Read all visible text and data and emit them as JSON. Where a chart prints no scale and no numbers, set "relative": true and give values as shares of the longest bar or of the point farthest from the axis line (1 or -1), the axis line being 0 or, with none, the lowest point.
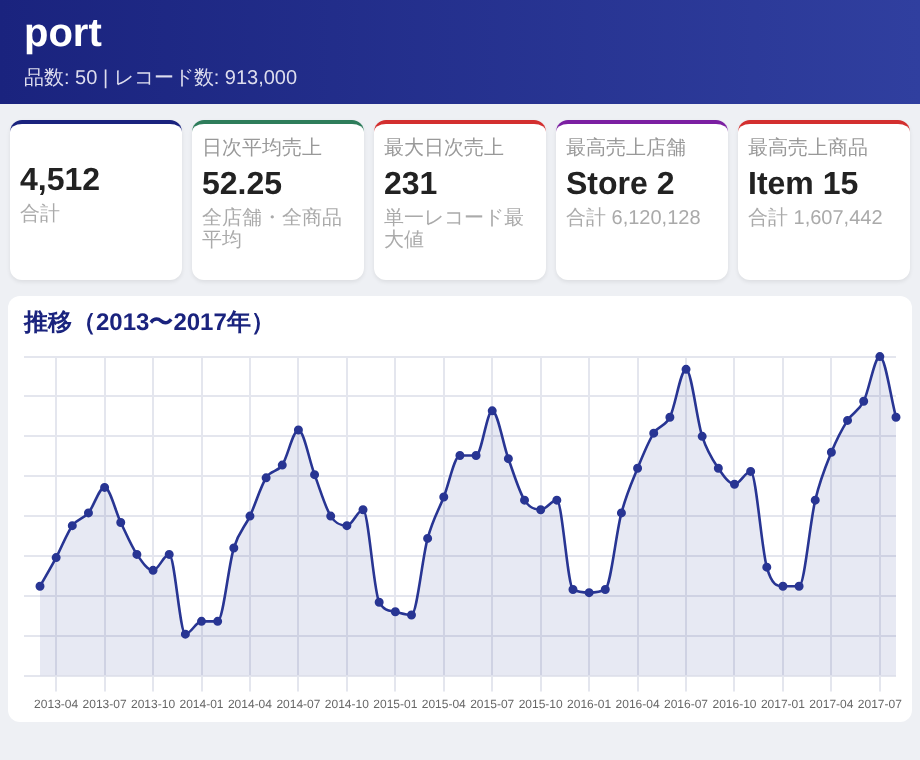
{
  "chart_data": [
    {
      "type": "other",
      "title": "port",
      "subtitle": "品数: 50 | レコード数: 913,000"
    },
    {
      "type": "other",
      "annotations": [
        "4,512",
        "合計"
      ],
      "color": "#1a237e"
    },
    {
      "type": "other",
      "title": "日次平均売上",
      "annotations": [
        "52.25",
        "全店舗・全商品平均"
      ],
      "color": "#2e7d5b"
    },
    {
      "type": "other",
      "title": "最大日次売上",
      "annotations": [
        "231",
        "単一レコード最大値"
      ],
      "color": "#d32f2f"
    },
    {
      "type": "other",
      "title": "最高売上店舗",
      "annotations": [
        "Store 2",
        "合計 6,120,128"
      ],
      "color": "#7b1fa2"
    },
    {
      "type": "other",
      "title": "最高売上商品",
      "annotations": [
        "Item 15",
        "合計 1,607,442"
      ],
      "color": "#d32f2f"
    },
    {
      "type": "area",
      "title": "推移（2013〜2017年）",
      "relative": true,
      "grid": true,
      "marker": "circle",
      "color": "#283593",
      "categories": [
        null,
        "2013-04",
        null,
        null,
        "2013-07",
        null,
        null,
        "2013-10",
        null,
        null,
        "2014-01",
        null,
        null,
        "2014-04",
        null,
        null,
        "2014-07",
        null,
        null,
        "2014-10",
        null,
        null,
        "2015-01",
        null,
        null,
        "2015-04",
        null,
        null,
        "2015-07",
        null,
        null,
        "2015-10",
        null,
        null,
        "2016-01",
        null,
        null,
        "2016-04",
        null,
        null,
        "2016-07",
        null,
        null,
        "2016-10",
        null,
        null,
        "2017-01",
        null,
        null,
        "2017-04",
        null,
        null,
        "2017-07",
        null
      ],
      "values": [
        0.28,
        0.37,
        0.47,
        0.51,
        0.59,
        0.48,
        0.38,
        0.33,
        0.38,
        0.13,
        0.17,
        0.17,
        0.4,
        0.5,
        0.62,
        0.66,
        0.77,
        0.63,
        0.5,
        0.47,
        0.52,
        0.23,
        0.2,
        0.19,
        0.43,
        0.56,
        0.69,
        0.69,
        0.83,
        0.68,
        0.55,
        0.52,
        0.55,
        0.27,
        0.26,
        0.27,
        0.51,
        0.65,
        0.76,
        0.81,
        0.96,
        0.75,
        0.65,
        0.6,
        0.64,
        0.34,
        0.28,
        0.28,
        0.55,
        0.7,
        0.8,
        0.86,
        1,
        0.81
      ]
    }
  ]
}
